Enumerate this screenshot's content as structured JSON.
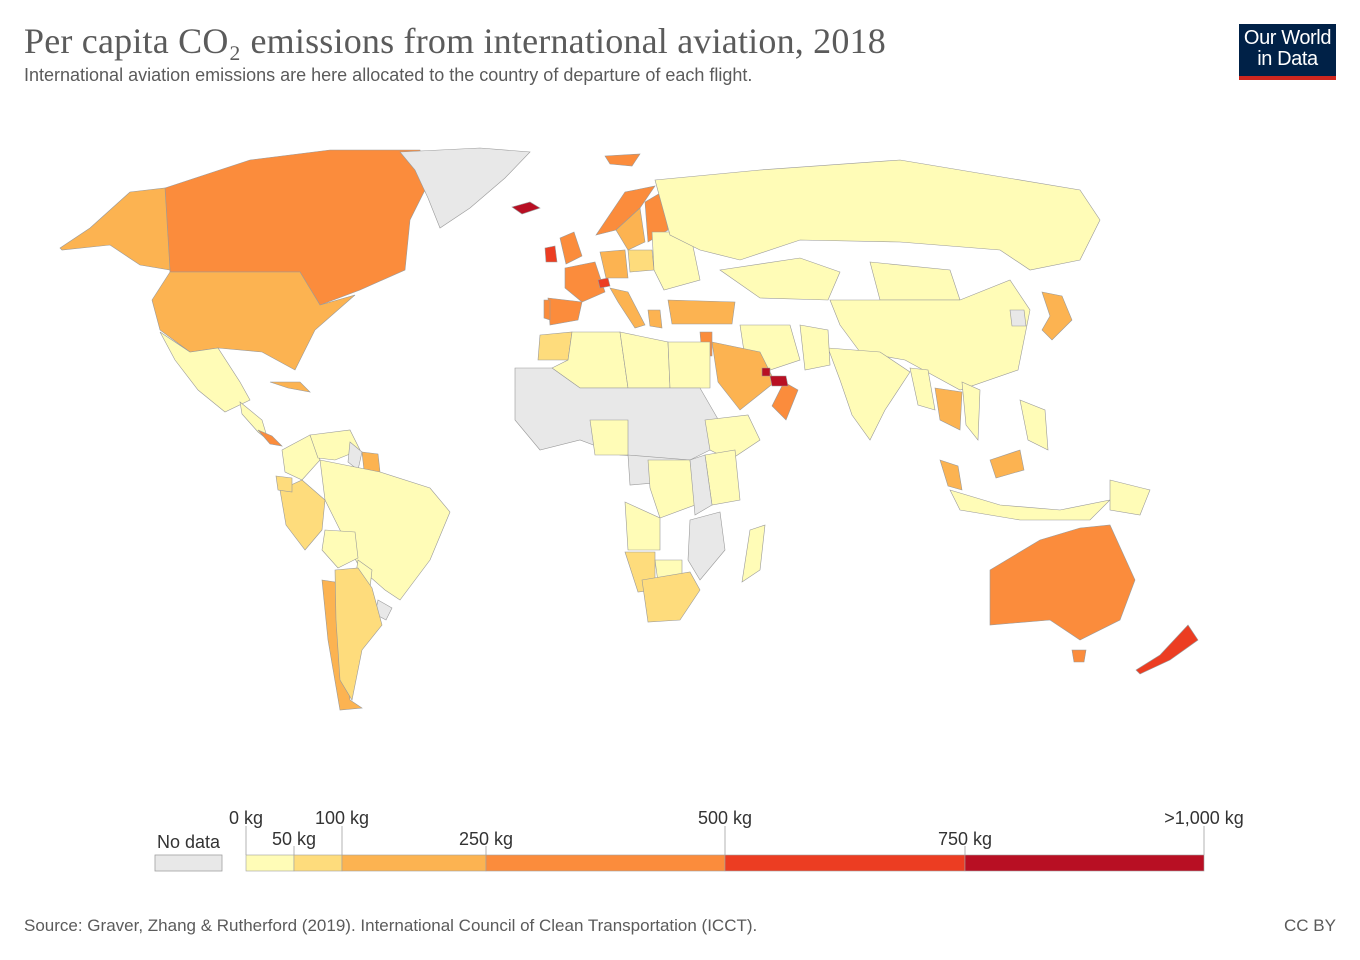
{
  "header": {
    "title": "Per capita CO₂ emissions from international aviation, 2018",
    "subtitle": "International aviation emissions are here allocated to the country of departure of each flight."
  },
  "logo": {
    "line1": "Our World",
    "line2": "in Data",
    "bg": "#002147",
    "accent": "#ce261e"
  },
  "map": {
    "metric": "Per capita CO₂ emissions from international aviation",
    "year": 2018,
    "unit": "kg",
    "no_data_color": "#e8e8e8",
    "countries": [
      {
        "name": "Canada",
        "bin": 4
      },
      {
        "name": "United States",
        "bin": 3
      },
      {
        "name": "Alaska (US)",
        "bin": 3
      },
      {
        "name": "Greenland",
        "bin": 0
      },
      {
        "name": "Mexico",
        "bin": 1
      },
      {
        "name": "Central America",
        "bin": 1
      },
      {
        "name": "Costa Rica",
        "bin": 4
      },
      {
        "name": "Cuba",
        "bin": 3
      },
      {
        "name": "Colombia",
        "bin": 1
      },
      {
        "name": "Venezuela",
        "bin": 1
      },
      {
        "name": "Guyana",
        "bin": 0
      },
      {
        "name": "Suriname",
        "bin": 3
      },
      {
        "name": "Brazil",
        "bin": 1
      },
      {
        "name": "Peru",
        "bin": 2
      },
      {
        "name": "Ecuador",
        "bin": 2
      },
      {
        "name": "Bolivia",
        "bin": 1
      },
      {
        "name": "Paraguay",
        "bin": 1
      },
      {
        "name": "Uruguay",
        "bin": 0
      },
      {
        "name": "Chile",
        "bin": 3
      },
      {
        "name": "Argentina",
        "bin": 2
      },
      {
        "name": "Iceland",
        "bin": 6
      },
      {
        "name": "Ireland",
        "bin": 5
      },
      {
        "name": "United Kingdom",
        "bin": 4
      },
      {
        "name": "Norway",
        "bin": 4
      },
      {
        "name": "Sweden",
        "bin": 3
      },
      {
        "name": "Finland",
        "bin": 4
      },
      {
        "name": "Svalbard",
        "bin": 4
      },
      {
        "name": "France",
        "bin": 4
      },
      {
        "name": "Spain",
        "bin": 4
      },
      {
        "name": "Portugal",
        "bin": 4
      },
      {
        "name": "Switzerland",
        "bin": 5
      },
      {
        "name": "Germany",
        "bin": 3
      },
      {
        "name": "Italy",
        "bin": 3
      },
      {
        "name": "Poland",
        "bin": 2
      },
      {
        "name": "Eastern Europe",
        "bin": 1
      },
      {
        "name": "Greece",
        "bin": 3
      },
      {
        "name": "Turkey",
        "bin": 3
      },
      {
        "name": "Russia",
        "bin": 1
      },
      {
        "name": "Kazakhstan",
        "bin": 1
      },
      {
        "name": "Mongolia",
        "bin": 1
      },
      {
        "name": "China",
        "bin": 1
      },
      {
        "name": "India",
        "bin": 1
      },
      {
        "name": "Pakistan",
        "bin": 1
      },
      {
        "name": "Iran",
        "bin": 1
      },
      {
        "name": "Saudi Arabia",
        "bin": 3
      },
      {
        "name": "Oman",
        "bin": 4
      },
      {
        "name": "United Arab Emirates",
        "bin": 6
      },
      {
        "name": "Qatar",
        "bin": 6
      },
      {
        "name": "Israel & Jordan",
        "bin": 4
      },
      {
        "name": "Japan",
        "bin": 3
      },
      {
        "name": "North Korea",
        "bin": 0
      },
      {
        "name": "Thailand",
        "bin": 3
      },
      {
        "name": "Myanmar",
        "bin": 1
      },
      {
        "name": "Vietnam",
        "bin": 1
      },
      {
        "name": "Malaysia",
        "bin": 3
      },
      {
        "name": "Borneo (Malaysia)",
        "bin": 3
      },
      {
        "name": "Indonesia",
        "bin": 1
      },
      {
        "name": "Philippines",
        "bin": 1
      },
      {
        "name": "Papua New Guinea",
        "bin": 1
      },
      {
        "name": "Australia",
        "bin": 4
      },
      {
        "name": "Tasmania",
        "bin": 4
      },
      {
        "name": "New Zealand",
        "bin": 5
      },
      {
        "name": "Morocco",
        "bin": 2
      },
      {
        "name": "Algeria",
        "bin": 1
      },
      {
        "name": "Libya",
        "bin": 1
      },
      {
        "name": "Egypt",
        "bin": 1
      },
      {
        "name": "Sahel & West Africa",
        "bin": 0
      },
      {
        "name": "Nigeria",
        "bin": 1
      },
      {
        "name": "Ethiopia",
        "bin": 1
      },
      {
        "name": "Central Africa",
        "bin": 0
      },
      {
        "name": "DR Congo",
        "bin": 1
      },
      {
        "name": "Angola",
        "bin": 1
      },
      {
        "name": "Kenya & Tanzania",
        "bin": 1
      },
      {
        "name": "East Africa",
        "bin": 0
      },
      {
        "name": "Namibia",
        "bin": 2
      },
      {
        "name": "Botswana",
        "bin": 1
      },
      {
        "name": "South Africa",
        "bin": 2
      },
      {
        "name": "Mozambique",
        "bin": 0
      },
      {
        "name": "Madagascar",
        "bin": 1
      }
    ]
  },
  "legend": {
    "no_data_label": "No data",
    "bins": [
      {
        "from": 0,
        "to": 50,
        "color": "#fffcb7"
      },
      {
        "from": 50,
        "to": 100,
        "color": "#fedc7c"
      },
      {
        "from": 100,
        "to": 250,
        "color": "#fcb351"
      },
      {
        "from": 250,
        "to": 500,
        "color": "#fb8c3c"
      },
      {
        "from": 500,
        "to": 750,
        "color": "#ec3d22"
      },
      {
        "from": 750,
        "to": 1000,
        "color": "#b80f23"
      }
    ],
    "ticks": [
      {
        "label": "0 kg",
        "row": "top"
      },
      {
        "label": "50 kg",
        "row": "bottom"
      },
      {
        "label": "100 kg",
        "row": "top"
      },
      {
        "label": "250 kg",
        "row": "bottom"
      },
      {
        "label": "500 kg",
        "row": "top"
      },
      {
        "label": "750 kg",
        "row": "bottom"
      },
      {
        "label": ">1,000 kg",
        "row": "top"
      }
    ]
  },
  "footer": {
    "source": "Source: Graver, Zhang & Rutherford (2019). International Council of Clean Transportation (ICCT).",
    "license": "CC BY"
  }
}
